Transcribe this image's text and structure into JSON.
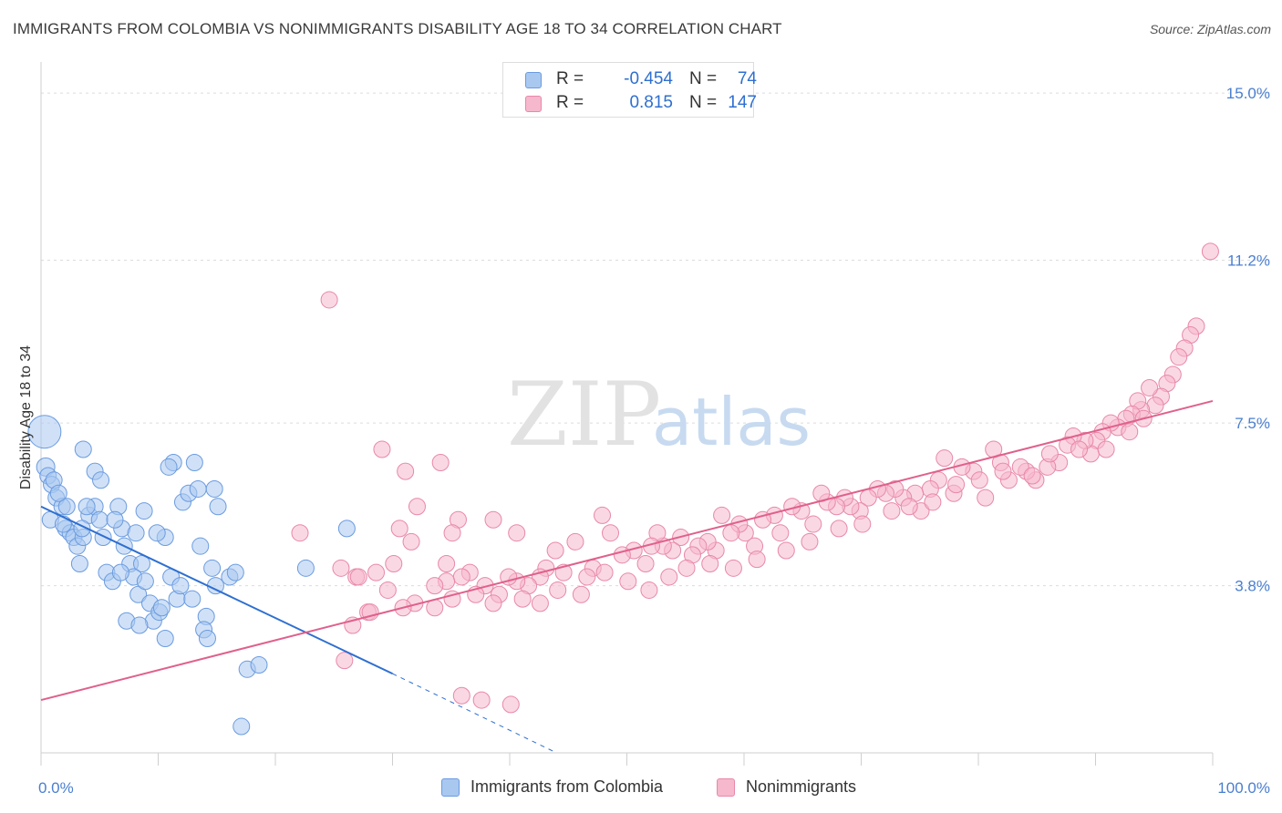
{
  "title": "IMMIGRANTS FROM COLOMBIA VS NONIMMIGRANTS DISABILITY AGE 18 TO 34 CORRELATION CHART",
  "source": "Source: ZipAtlas.com",
  "watermark": {
    "zip": "ZIP",
    "atlas": "atlas"
  },
  "legend": {
    "rows": [
      {
        "r_label": "R =",
        "r_value": "-0.454",
        "n_label": "N =",
        "n_value": "74",
        "color": "#a9c8f0",
        "border": "#6a9be0"
      },
      {
        "r_label": "R =",
        "r_value": "0.815",
        "n_label": "N =",
        "n_value": "147",
        "color": "#f6b8cc",
        "border": "#e888a8"
      }
    ]
  },
  "bottom_legend": [
    {
      "label": "Immigrants from Colombia",
      "color": "#a9c8f0",
      "border": "#6a9be0"
    },
    {
      "label": "Nonimmigrants",
      "color": "#f6b8cc",
      "border": "#e888a8"
    }
  ],
  "chart_data": {
    "type": "scatter",
    "title": "IMMIGRANTS FROM COLOMBIA VS NONIMMIGRANTS DISABILITY AGE 18 TO 34 CORRELATION CHART",
    "xlabel": "",
    "ylabel": "Disability Age 18 to 34",
    "xlim": [
      0,
      100
    ],
    "ylim": [
      0,
      15.5
    ],
    "y_ticks": [
      {
        "value": 3.8,
        "label": "3.8%"
      },
      {
        "value": 7.5,
        "label": "7.5%"
      },
      {
        "value": 11.2,
        "label": "11.2%"
      },
      {
        "value": 15.0,
        "label": "15.0%"
      }
    ],
    "x_tick_labels": [
      {
        "value": 0,
        "label": "0.0%"
      },
      {
        "value": 100,
        "label": "100.0%"
      }
    ],
    "grid": true,
    "legend_position": "top-center",
    "series": [
      {
        "name": "Immigrants from Colombia",
        "color": "#a9c8f0",
        "stroke": "#6a9be0",
        "trend": {
          "x0": 0,
          "y0": 5.6,
          "x1": 30,
          "y1": 1.8,
          "dash_to_x": 44,
          "dash_to_y": 0.0,
          "color": "#2e6fd0"
        },
        "points": [
          [
            0.3,
            7.3,
            18
          ],
          [
            0.4,
            6.5,
            10
          ],
          [
            0.6,
            6.3,
            9
          ],
          [
            0.9,
            6.1,
            9
          ],
          [
            1.1,
            6.2,
            9
          ],
          [
            1.3,
            5.8,
            9
          ],
          [
            0.8,
            5.3,
            9
          ],
          [
            1.8,
            5.6,
            9
          ],
          [
            2.1,
            5.1,
            9
          ],
          [
            2.5,
            5.0,
            9
          ],
          [
            2.8,
            4.9,
            9
          ],
          [
            3.1,
            4.7,
            9
          ],
          [
            3.6,
            4.9,
            9
          ],
          [
            4.1,
            5.4,
            9
          ],
          [
            3.5,
            5.1,
            9
          ],
          [
            3.3,
            4.3,
            9
          ],
          [
            4.6,
            5.6,
            9
          ],
          [
            5.0,
            5.3,
            9
          ],
          [
            5.3,
            4.9,
            9
          ],
          [
            5.6,
            4.1,
            9
          ],
          [
            6.1,
            3.9,
            9
          ],
          [
            6.6,
            5.6,
            9
          ],
          [
            6.9,
            5.1,
            9
          ],
          [
            7.1,
            4.7,
            9
          ],
          [
            7.6,
            4.3,
            9
          ],
          [
            8.1,
            5.0,
            9
          ],
          [
            8.6,
            4.3,
            9
          ],
          [
            7.9,
            4.0,
            9
          ],
          [
            8.3,
            3.6,
            9
          ],
          [
            8.9,
            3.9,
            9
          ],
          [
            9.3,
            3.4,
            9
          ],
          [
            9.6,
            3.0,
            9
          ],
          [
            10.1,
            3.2,
            9
          ],
          [
            10.6,
            4.9,
            9
          ],
          [
            11.1,
            4.0,
            9
          ],
          [
            11.6,
            3.5,
            9
          ],
          [
            12.1,
            5.7,
            9
          ],
          [
            12.6,
            5.9,
            9
          ],
          [
            13.1,
            6.6,
            9
          ],
          [
            13.6,
            4.7,
            9
          ],
          [
            14.1,
            3.1,
            9
          ],
          [
            14.6,
            4.2,
            9
          ],
          [
            15.1,
            5.6,
            9
          ],
          [
            16.1,
            4.0,
            9
          ],
          [
            17.6,
            1.9,
            9
          ],
          [
            18.6,
            2.0,
            9
          ],
          [
            3.6,
            6.9,
            9
          ],
          [
            4.6,
            6.4,
            9
          ],
          [
            5.1,
            6.2,
            9
          ],
          [
            6.3,
            5.3,
            9
          ],
          [
            7.3,
            3.0,
            9
          ],
          [
            8.4,
            2.9,
            9
          ],
          [
            10.3,
            3.3,
            9
          ],
          [
            11.9,
            3.8,
            9
          ],
          [
            12.9,
            3.5,
            9
          ],
          [
            13.9,
            2.8,
            9
          ],
          [
            14.2,
            2.6,
            9
          ],
          [
            14.8,
            6.0,
            9
          ],
          [
            14.9,
            3.8,
            9
          ],
          [
            16.6,
            4.1,
            9
          ],
          [
            17.1,
            0.6,
            9
          ],
          [
            22.6,
            4.2,
            9
          ],
          [
            26.1,
            5.1,
            9
          ],
          [
            11.3,
            6.6,
            9
          ],
          [
            10.6,
            2.6,
            9
          ],
          [
            8.8,
            5.5,
            9
          ],
          [
            6.8,
            4.1,
            9
          ],
          [
            2.2,
            5.6,
            9
          ],
          [
            1.5,
            5.9,
            9
          ],
          [
            1.9,
            5.2,
            9
          ],
          [
            3.9,
            5.6,
            9
          ],
          [
            9.9,
            5.0,
            9
          ],
          [
            10.9,
            6.5,
            9
          ],
          [
            13.4,
            6.0,
            9
          ]
        ]
      },
      {
        "name": "Nonimmigrants",
        "color": "#f6b8cc",
        "stroke": "#e888a8",
        "trend": {
          "x0": 0,
          "y0": 1.2,
          "x1": 100,
          "y1": 8.0,
          "color": "#e0608c"
        },
        "points": [
          [
            99.8,
            11.4,
            9
          ],
          [
            98.6,
            9.7,
            9
          ],
          [
            98.1,
            9.5,
            9
          ],
          [
            97.6,
            9.2,
            9
          ],
          [
            97.1,
            9.0,
            9
          ],
          [
            96.6,
            8.6,
            9
          ],
          [
            96.1,
            8.4,
            9
          ],
          [
            95.6,
            8.1,
            9
          ],
          [
            95.1,
            7.9,
            9
          ],
          [
            94.6,
            8.3,
            9
          ],
          [
            93.9,
            7.8,
            9
          ],
          [
            93.6,
            8.0,
            9
          ],
          [
            93.1,
            7.7,
            9
          ],
          [
            92.6,
            7.6,
            9
          ],
          [
            91.9,
            7.4,
            9
          ],
          [
            91.3,
            7.5,
            9
          ],
          [
            90.6,
            7.3,
            9
          ],
          [
            90.1,
            7.1,
            9
          ],
          [
            89.6,
            6.8,
            9
          ],
          [
            89.1,
            7.1,
            9
          ],
          [
            88.1,
            7.2,
            9
          ],
          [
            87.6,
            7.0,
            9
          ],
          [
            86.9,
            6.6,
            9
          ],
          [
            85.9,
            6.5,
            9
          ],
          [
            84.9,
            6.2,
            9
          ],
          [
            84.1,
            6.4,
            9
          ],
          [
            83.6,
            6.5,
            9
          ],
          [
            82.6,
            6.2,
            9
          ],
          [
            81.9,
            6.6,
            9
          ],
          [
            81.3,
            6.9,
            9
          ],
          [
            80.6,
            5.8,
            9
          ],
          [
            79.6,
            6.4,
            9
          ],
          [
            78.6,
            6.5,
            9
          ],
          [
            77.9,
            5.9,
            9
          ],
          [
            77.1,
            6.7,
            9
          ],
          [
            76.6,
            6.2,
            9
          ],
          [
            75.9,
            6.0,
            9
          ],
          [
            75.1,
            5.5,
            9
          ],
          [
            74.6,
            5.9,
            9
          ],
          [
            73.6,
            5.8,
            9
          ],
          [
            72.9,
            6.0,
            9
          ],
          [
            72.1,
            5.9,
            9
          ],
          [
            71.4,
            6.0,
            9
          ],
          [
            70.6,
            5.8,
            9
          ],
          [
            69.9,
            5.5,
            9
          ],
          [
            69.1,
            5.6,
            9
          ],
          [
            68.6,
            5.8,
            9
          ],
          [
            67.9,
            5.6,
            9
          ],
          [
            67.1,
            5.7,
            9
          ],
          [
            66.6,
            5.9,
            9
          ],
          [
            65.9,
            5.2,
            9
          ],
          [
            64.9,
            5.5,
            9
          ],
          [
            64.1,
            5.6,
            9
          ],
          [
            63.1,
            5.0,
            9
          ],
          [
            62.6,
            5.4,
            9
          ],
          [
            61.6,
            5.3,
            9
          ],
          [
            60.9,
            4.7,
            9
          ],
          [
            60.1,
            5.0,
            9
          ],
          [
            59.6,
            5.2,
            9
          ],
          [
            58.9,
            5.0,
            9
          ],
          [
            58.1,
            5.4,
            9
          ],
          [
            57.6,
            4.6,
            9
          ],
          [
            56.9,
            4.8,
            9
          ],
          [
            56.1,
            4.7,
            9
          ],
          [
            55.6,
            4.5,
            9
          ],
          [
            54.6,
            4.9,
            9
          ],
          [
            53.9,
            4.6,
            9
          ],
          [
            53.1,
            4.7,
            9
          ],
          [
            52.6,
            5.0,
            9
          ],
          [
            52.1,
            4.7,
            9
          ],
          [
            51.6,
            4.3,
            9
          ],
          [
            50.6,
            4.6,
            9
          ],
          [
            49.6,
            4.5,
            9
          ],
          [
            48.6,
            5.0,
            9
          ],
          [
            47.9,
            5.4,
            9
          ],
          [
            47.1,
            4.2,
            9
          ],
          [
            46.6,
            4.0,
            9
          ],
          [
            45.6,
            4.8,
            9
          ],
          [
            44.6,
            4.1,
            9
          ],
          [
            43.9,
            4.6,
            9
          ],
          [
            43.1,
            4.2,
            9
          ],
          [
            42.6,
            4.0,
            9
          ],
          [
            41.6,
            3.8,
            9
          ],
          [
            41.1,
            3.5,
            9
          ],
          [
            40.6,
            3.9,
            9
          ],
          [
            39.9,
            4.0,
            9
          ],
          [
            39.1,
            3.6,
            9
          ],
          [
            38.6,
            3.4,
            9
          ],
          [
            37.9,
            3.8,
            9
          ],
          [
            37.1,
            3.6,
            9
          ],
          [
            36.6,
            4.1,
            9
          ],
          [
            35.9,
            4.0,
            9
          ],
          [
            35.1,
            3.5,
            9
          ],
          [
            34.6,
            3.9,
            9
          ],
          [
            33.6,
            3.8,
            9
          ],
          [
            31.9,
            3.4,
            9
          ],
          [
            30.9,
            3.3,
            9
          ],
          [
            30.1,
            4.3,
            9
          ],
          [
            29.6,
            3.7,
            9
          ],
          [
            28.6,
            4.1,
            9
          ],
          [
            27.9,
            3.2,
            9
          ],
          [
            26.9,
            4.0,
            9
          ],
          [
            25.9,
            2.1,
            9
          ],
          [
            25.6,
            4.2,
            9
          ],
          [
            24.6,
            10.3,
            9
          ],
          [
            35.6,
            5.3,
            9
          ],
          [
            35.1,
            5.0,
            9
          ],
          [
            34.6,
            4.3,
            9
          ],
          [
            34.1,
            6.6,
            9
          ],
          [
            33.6,
            3.3,
            9
          ],
          [
            32.1,
            5.6,
            9
          ],
          [
            31.1,
            6.4,
            9
          ],
          [
            30.6,
            5.1,
            9
          ],
          [
            29.1,
            6.9,
            9
          ],
          [
            28.1,
            3.2,
            9
          ],
          [
            26.6,
            2.9,
            9
          ],
          [
            27.1,
            4.0,
            9
          ],
          [
            22.1,
            5.0,
            9
          ],
          [
            37.6,
            1.2,
            9
          ],
          [
            35.9,
            1.3,
            9
          ],
          [
            40.1,
            1.1,
            9
          ],
          [
            31.6,
            4.8,
            9
          ],
          [
            40.6,
            5.0,
            9
          ],
          [
            38.6,
            5.3,
            9
          ],
          [
            42.6,
            3.4,
            9
          ],
          [
            44.1,
            3.7,
            9
          ],
          [
            46.1,
            3.6,
            9
          ],
          [
            48.1,
            4.1,
            9
          ],
          [
            50.1,
            3.9,
            9
          ],
          [
            51.9,
            3.7,
            9
          ],
          [
            53.6,
            4.0,
            9
          ],
          [
            55.1,
            4.2,
            9
          ],
          [
            57.1,
            4.3,
            9
          ],
          [
            59.1,
            4.2,
            9
          ],
          [
            61.1,
            4.4,
            9
          ],
          [
            63.6,
            4.6,
            9
          ],
          [
            65.6,
            4.8,
            9
          ],
          [
            68.1,
            5.1,
            9
          ],
          [
            70.1,
            5.2,
            9
          ],
          [
            72.6,
            5.5,
            9
          ],
          [
            74.1,
            5.6,
            9
          ],
          [
            76.1,
            5.7,
            9
          ],
          [
            78.1,
            6.1,
            9
          ],
          [
            80.1,
            6.2,
            9
          ],
          [
            82.1,
            6.4,
            9
          ],
          [
            84.6,
            6.3,
            9
          ],
          [
            86.1,
            6.8,
            9
          ],
          [
            88.6,
            6.9,
            9
          ],
          [
            90.9,
            6.9,
            9
          ],
          [
            92.9,
            7.3,
            9
          ],
          [
            94.1,
            7.6,
            9
          ]
        ]
      }
    ]
  }
}
